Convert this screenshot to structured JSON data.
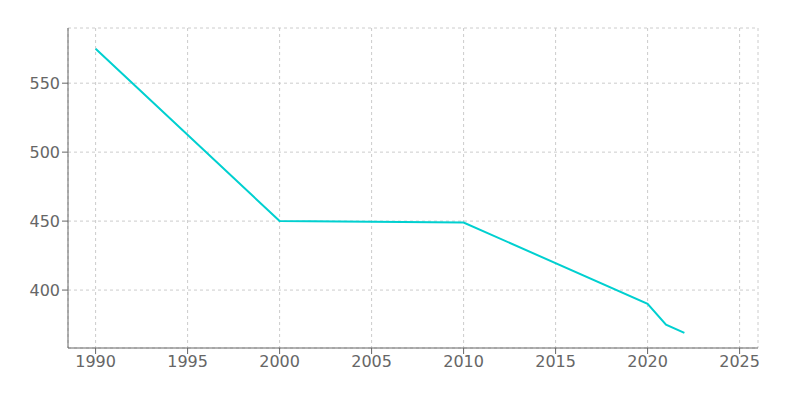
{
  "chart_data": {
    "type": "line",
    "x": [
      1990,
      2000,
      2010,
      2020,
      2021,
      2022
    ],
    "values": [
      575,
      450,
      449,
      390,
      375,
      369
    ],
    "color": "#00d0d0",
    "xlim": [
      1988.5,
      2026
    ],
    "ylim": [
      358,
      590
    ],
    "xticks": [
      1990,
      1995,
      2000,
      2005,
      2010,
      2015,
      2020,
      2025
    ],
    "yticks": [
      400,
      450,
      500,
      550
    ],
    "grid": true
  }
}
